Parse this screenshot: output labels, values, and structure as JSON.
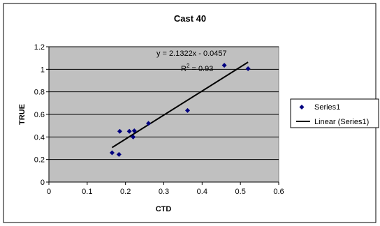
{
  "chart_data": {
    "type": "scatter",
    "title": "Cast 40",
    "xlabel": "CTD",
    "ylabel": "TRUE",
    "xlim": [
      0,
      0.6
    ],
    "ylim": [
      0,
      1.2
    ],
    "xticks": [
      "0",
      "0.1",
      "0.2",
      "0.3",
      "0.4",
      "0.5",
      "0.6"
    ],
    "yticks": [
      "0",
      "0.2",
      "0.4",
      "0.6",
      "0.8",
      "1",
      "1.2"
    ],
    "grid": true,
    "legend_position": "right",
    "series": [
      {
        "name": "Series1",
        "color": "#000080",
        "points": [
          {
            "x": 0.165,
            "y": 0.26
          },
          {
            "x": 0.183,
            "y": 0.245
          },
          {
            "x": 0.185,
            "y": 0.45
          },
          {
            "x": 0.21,
            "y": 0.45
          },
          {
            "x": 0.22,
            "y": 0.4
          },
          {
            "x": 0.223,
            "y": 0.455
          },
          {
            "x": 0.26,
            "y": 0.52
          },
          {
            "x": 0.362,
            "y": 0.635
          },
          {
            "x": 0.458,
            "y": 1.035
          },
          {
            "x": 0.52,
            "y": 1.005
          }
        ]
      }
    ],
    "trendline": {
      "name": "Linear (Series1)",
      "slope": 2.1322,
      "intercept": -0.0457,
      "x_range": [
        0.165,
        0.52
      ]
    },
    "annotations": {
      "equation": "y = 2.1322x - 0.0457",
      "r2_label": "R",
      "r2_exponent": "2",
      "r2_value": " = 0.93"
    }
  }
}
